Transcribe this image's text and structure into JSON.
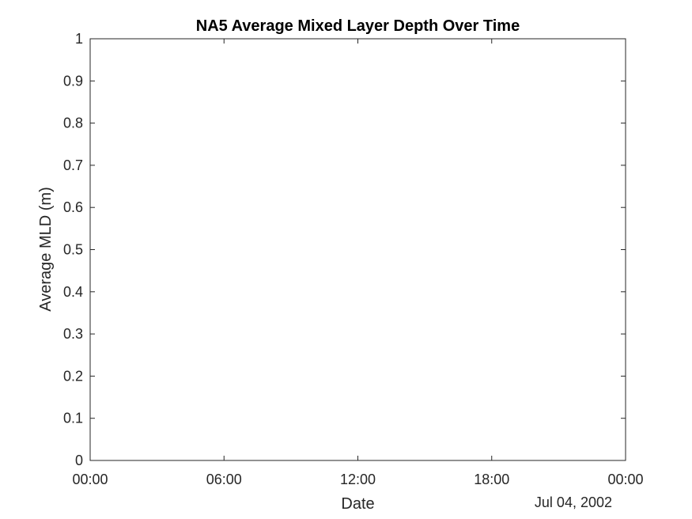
{
  "chart_data": {
    "type": "line",
    "title": "NA5 Average Mixed Layer Depth Over Time",
    "xlabel": "Date",
    "ylabel": "Average MLD (m)",
    "x_tick_labels": [
      "00:00",
      "06:00",
      "12:00",
      "18:00",
      "00:00"
    ],
    "x_date_label": "Jul 04, 2002",
    "ylim": [
      0,
      1
    ],
    "y_ticks": [
      0,
      0.1,
      0.2,
      0.3,
      0.4,
      0.5,
      0.6,
      0.7,
      0.8,
      0.9,
      1
    ],
    "y_tick_labels": [
      "0",
      "0.1",
      "0.2",
      "0.3",
      "0.4",
      "0.5",
      "0.6",
      "0.7",
      "0.8",
      "0.9",
      "1"
    ],
    "series": [],
    "grid": false,
    "legend": "none"
  },
  "colors": {
    "background": "#ffffff",
    "axis": "#262626",
    "title": "#000000"
  }
}
